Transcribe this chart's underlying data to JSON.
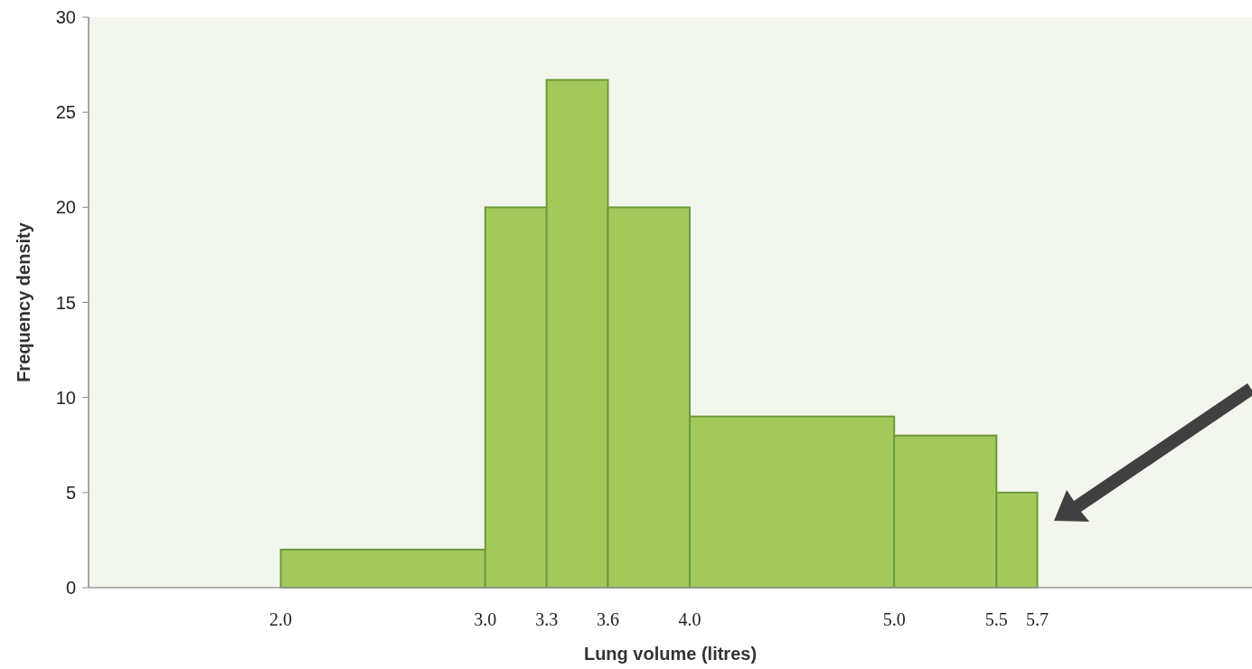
{
  "chart_data": {
    "type": "histogram",
    "xlabel": "Lung volume (litres)",
    "ylabel": "Frequency density",
    "bins": [
      2.0,
      3.0,
      3.3,
      3.6,
      4.0,
      5.0,
      5.5,
      5.7
    ],
    "values": [
      2,
      20,
      26.7,
      20,
      9,
      8,
      5
    ],
    "color": "#a2c95a",
    "xlim": [
      1.06,
      6.75
    ],
    "xticks": [
      {
        "value": 2,
        "label": "2.0"
      },
      {
        "value": 3,
        "label": "3.0"
      },
      {
        "value": 3.3,
        "label": "3.3"
      },
      {
        "value": 3.6,
        "label": "3.6"
      },
      {
        "value": 4,
        "label": "4.0"
      },
      {
        "value": 5,
        "label": "5.0"
      },
      {
        "value": 5.5,
        "label": "5.5"
      },
      {
        "value": 5.7,
        "label": "5.7"
      }
    ],
    "ylim": [
      0,
      30
    ],
    "yticks": [
      0,
      5,
      10,
      15,
      20,
      25,
      30
    ]
  }
}
